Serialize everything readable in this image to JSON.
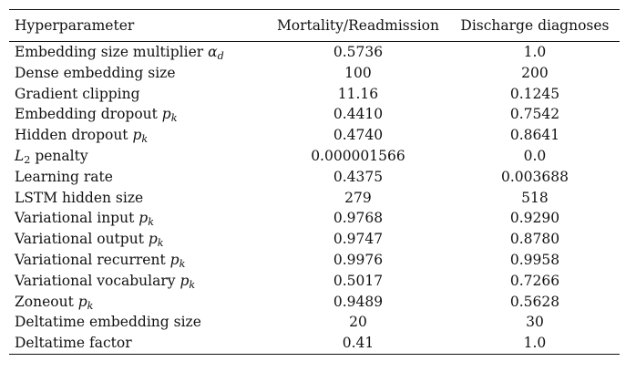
{
  "table": {
    "headers": [
      "Hyperparameter",
      "Mortality/Readmission",
      "Discharge diagnoses"
    ],
    "rows": [
      {
        "name": "Embedding size multiplier ",
        "sym": "α",
        "sub": "d",
        "mortality": "0.5736",
        "discharge": "1.0"
      },
      {
        "name": "Dense embedding size",
        "sym": "",
        "sub": "",
        "mortality": "100",
        "discharge": "200"
      },
      {
        "name": "Gradient clipping",
        "sym": "",
        "sub": "",
        "mortality": "11.16",
        "discharge": "0.1245"
      },
      {
        "name": "Embedding dropout ",
        "sym": "p",
        "sub": "k",
        "mortality": "0.4410",
        "discharge": "0.7542"
      },
      {
        "name": "Hidden dropout ",
        "sym": "p",
        "sub": "k",
        "mortality": "0.4740",
        "discharge": "0.8641"
      },
      {
        "name": "",
        "sym": "L",
        "sub": "2",
        "suffix": " penalty",
        "mortality": "0.000001566",
        "discharge": "0.0"
      },
      {
        "name": "Learning rate",
        "sym": "",
        "sub": "",
        "mortality": "0.4375",
        "discharge": "0.003688"
      },
      {
        "name": "LSTM hidden size",
        "sym": "",
        "sub": "",
        "mortality": "279",
        "discharge": "518"
      },
      {
        "name": "Variational input ",
        "sym": "p",
        "sub": "k",
        "mortality": "0.9768",
        "discharge": "0.9290"
      },
      {
        "name": "Variational output ",
        "sym": "p",
        "sub": "k",
        "mortality": "0.9747",
        "discharge": "0.8780"
      },
      {
        "name": "Variational recurrent ",
        "sym": "p",
        "sub": "k",
        "mortality": "0.9976",
        "discharge": "0.9958"
      },
      {
        "name": "Variational vocabulary ",
        "sym": "p",
        "sub": "k",
        "mortality": "0.5017",
        "discharge": "0.7266"
      },
      {
        "name": "Zoneout ",
        "sym": "p",
        "sub": "k",
        "mortality": "0.9489",
        "discharge": "0.5628"
      },
      {
        "name": "Deltatime embedding size",
        "sym": "",
        "sub": "",
        "mortality": "20",
        "discharge": "30"
      },
      {
        "name": "Deltatime factor",
        "sym": "",
        "sub": "",
        "mortality": "0.41",
        "discharge": "1.0"
      }
    ]
  }
}
